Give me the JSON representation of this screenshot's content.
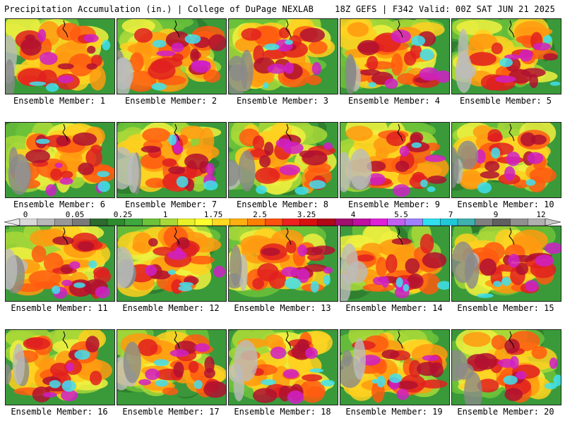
{
  "header": {
    "title_left": "Precipitation Accumulation (in.) | College of DuPage NEXLAB",
    "title_right": "18Z GEFS | F342 Valid: 00Z SAT JUN 21 2025"
  },
  "colorbar": {
    "labels": [
      "0",
      "0.05",
      "0.25",
      "1",
      "1.75",
      "2.5",
      "3.25",
      "4",
      "5.5",
      "7",
      "9",
      "12"
    ],
    "colors": [
      "#d8d8d8",
      "#b8b8b8",
      "#989898",
      "#7a7a7a",
      "#2e6b2e",
      "#2e8b2e",
      "#3ea83e",
      "#6cc23a",
      "#a8d838",
      "#e8f028",
      "#ffff30",
      "#ffd820",
      "#ffb010",
      "#ff8000",
      "#ff5010",
      "#f02020",
      "#d81010",
      "#b00818",
      "#a01070",
      "#c010a0",
      "#e020d8",
      "#c060f0",
      "#a080ff",
      "#30e0f0",
      "#20c8d8",
      "#40b0b0",
      "#808080",
      "#606060",
      "#909090",
      "#b0b0b0"
    ]
  },
  "panels": [
    {
      "label": "Ensemble Member: 1"
    },
    {
      "label": "Ensemble Member: 2"
    },
    {
      "label": "Ensemble Member: 3"
    },
    {
      "label": "Ensemble Member: 4"
    },
    {
      "label": "Ensemble Member: 5"
    },
    {
      "label": "Ensemble Member: 6"
    },
    {
      "label": "Ensemble Member: 7"
    },
    {
      "label": "Ensemble Member: 8"
    },
    {
      "label": "Ensemble Member: 9"
    },
    {
      "label": "Ensemble Member: 10"
    },
    {
      "label": "Ensemble Member: 11"
    },
    {
      "label": "Ensemble Member: 12"
    },
    {
      "label": "Ensemble Member: 13"
    },
    {
      "label": "Ensemble Member: 14"
    },
    {
      "label": "Ensemble Member: 15"
    },
    {
      "label": "Ensemble Member: 16"
    },
    {
      "label": "Ensemble Member: 17"
    },
    {
      "label": "Ensemble Member: 18"
    },
    {
      "label": "Ensemble Member: 19"
    },
    {
      "label": "Ensemble Member: 20"
    }
  ]
}
